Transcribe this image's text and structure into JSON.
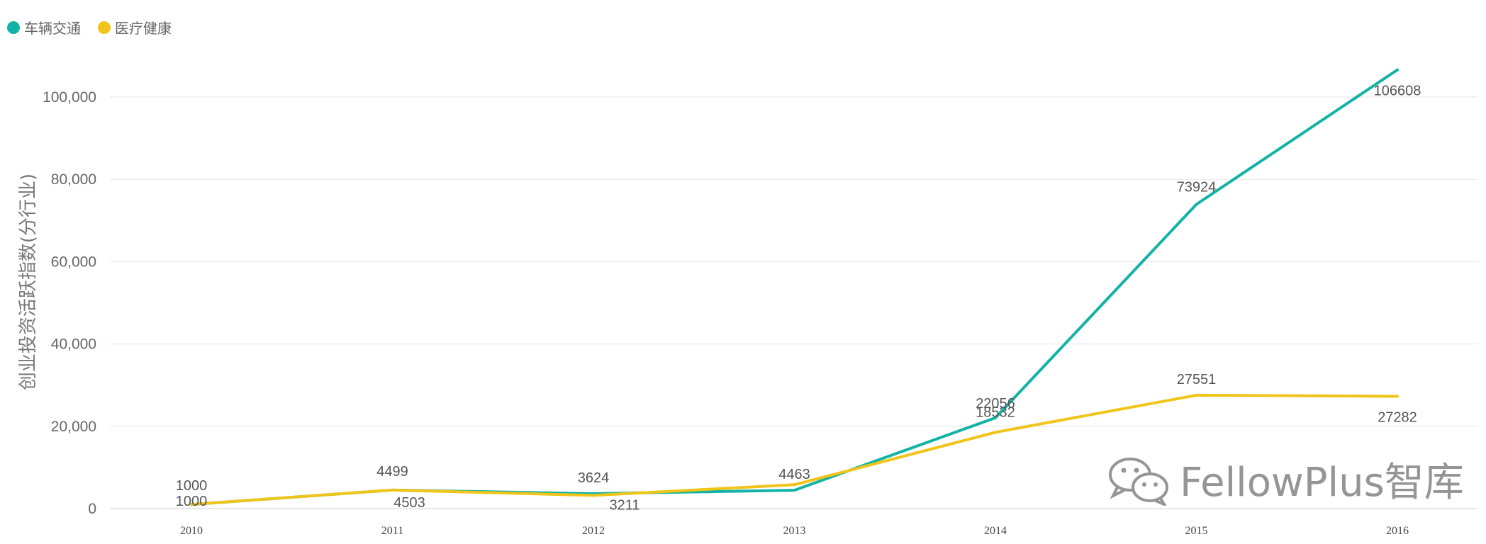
{
  "chart_data": {
    "type": "line",
    "title": "",
    "xlabel": "",
    "ylabel": "创业投资活跃指数(分行业)",
    "categories": [
      "2010",
      "2011",
      "2012",
      "2013",
      "2014",
      "2015",
      "2016"
    ],
    "y_ticks": [
      "0",
      "20,000",
      "40,000",
      "60,000",
      "80,000",
      "100,000"
    ],
    "ylim": [
      0,
      108000
    ],
    "grid": true,
    "legend_position": "top-left",
    "series": [
      {
        "name": "车辆交通",
        "color": "#12b3a6",
        "values": [
          1000,
          4503,
          3624,
          4463,
          22056,
          73924,
          106608
        ],
        "labels": [
          "1000",
          "4503",
          "3624",
          "4463",
          "22056",
          "73924",
          "106608"
        ]
      },
      {
        "name": "医疗健康",
        "color": "#f0c419",
        "values": [
          1000,
          4499,
          3211,
          5800,
          18532,
          27551,
          27282
        ],
        "labels": [
          "1000",
          "4499",
          "3211",
          "",
          "18532",
          "27551",
          "27282"
        ]
      }
    ]
  },
  "watermark": {
    "text": "FellowPlus智库",
    "icon": "wechat-icon"
  }
}
